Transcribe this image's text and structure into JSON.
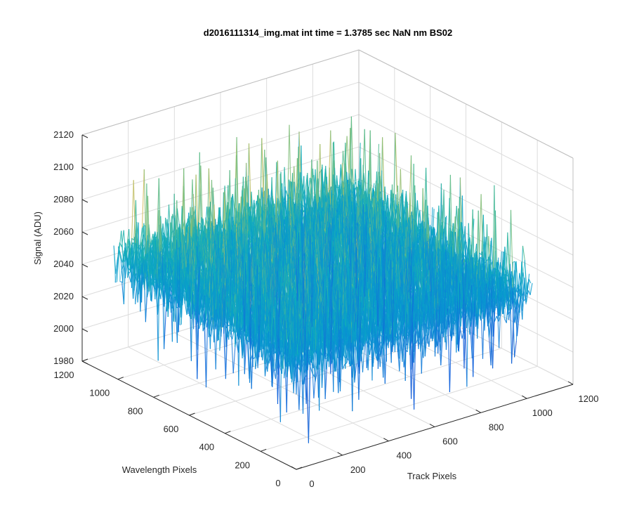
{
  "chart_data": {
    "type": "surface",
    "title": "d2016111314_img.mat int time = 1.3785 sec  NaN nm BS02",
    "xlabel": "Track Pixels",
    "ylabel": "Wavelength Pixels",
    "zlabel": "Signal (ADU)",
    "xlim": [
      0,
      1200
    ],
    "ylim": [
      0,
      1200
    ],
    "zlim": [
      1980,
      2120
    ],
    "xticks": [
      "0",
      "200",
      "400",
      "600",
      "800",
      "1000",
      "1200"
    ],
    "yticks": [
      "0",
      "200",
      "400",
      "600",
      "800",
      "1000",
      "1200"
    ],
    "zticks": [
      "1980",
      "2000",
      "2020",
      "2040",
      "2060",
      "2080",
      "2100",
      "2120"
    ],
    "grid": true,
    "colormap": "parula",
    "data_extent": {
      "x": [
        1,
        1024
      ],
      "y": [
        1,
        1024
      ]
    },
    "signal_mean": 2048,
    "signal_range": [
      1990,
      2105
    ],
    "colors": {
      "low": "#0072bd",
      "mid": "#30b9a6",
      "high": "#f2c12e"
    }
  }
}
